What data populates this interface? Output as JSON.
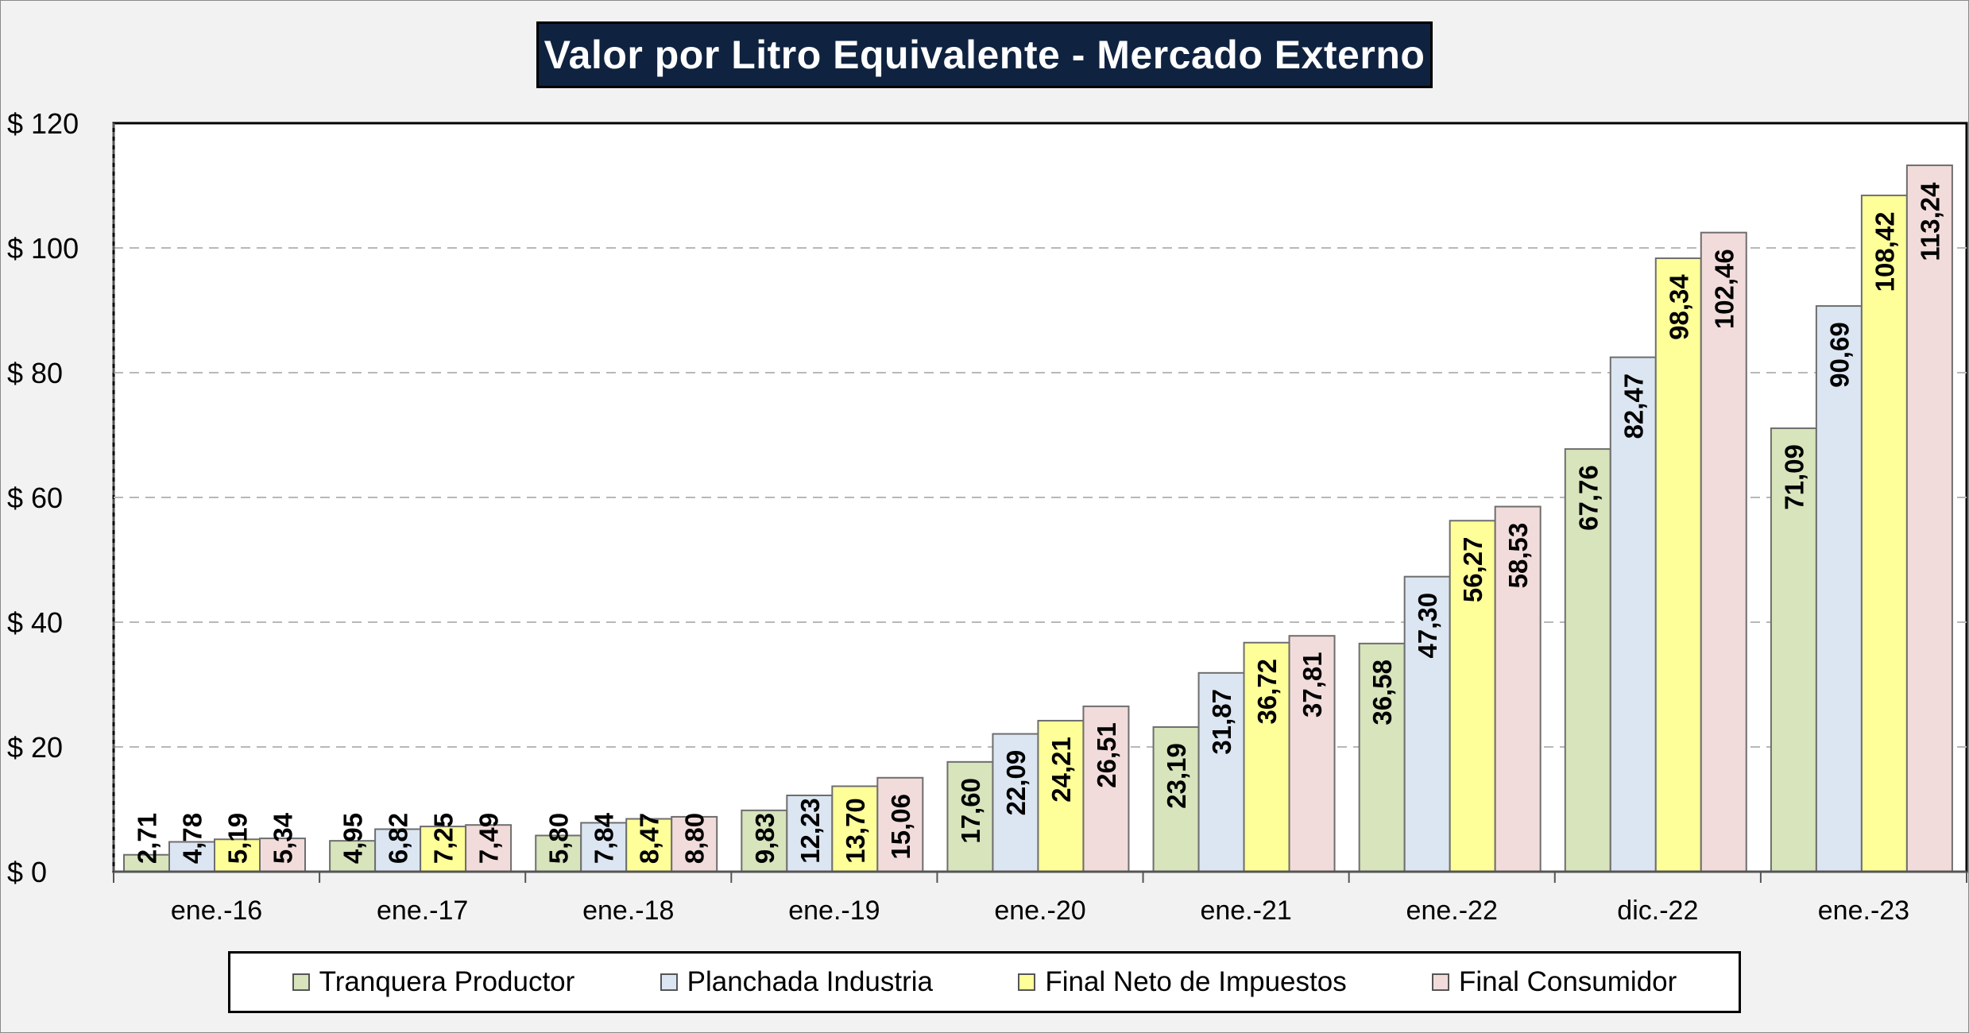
{
  "chart_data": {
    "type": "bar",
    "title": "Valor por Litro Equivalente - Mercado Externo",
    "categories": [
      "ene.-16",
      "ene.-17",
      "ene.-18",
      "ene.-19",
      "ene.-20",
      "ene.-21",
      "ene.-22",
      "dic.-22",
      "ene.-23"
    ],
    "series": [
      {
        "name": "Tranquera Productor",
        "color": "#d7e4bc",
        "values": [
          2.71,
          4.95,
          5.8,
          9.83,
          17.6,
          23.19,
          36.58,
          67.76,
          71.09
        ],
        "labels": [
          "2,71",
          "4,95",
          "5,80",
          "9,83",
          "17,60",
          "23,19",
          "36,58",
          "67,76",
          "71,09"
        ]
      },
      {
        "name": "Planchada Industria",
        "color": "#dce6f2",
        "values": [
          4.78,
          6.82,
          7.84,
          12.23,
          22.09,
          31.87,
          47.3,
          82.47,
          90.69
        ],
        "labels": [
          "4,78",
          "6,82",
          "7,84",
          "12,23",
          "22,09",
          "31,87",
          "47,30",
          "82,47",
          "90,69"
        ]
      },
      {
        "name": "Final Neto de Impuestos",
        "color": "#ffff99",
        "values": [
          5.19,
          7.25,
          8.47,
          13.7,
          24.21,
          36.72,
          56.27,
          98.34,
          108.42
        ],
        "labels": [
          "5,19",
          "7,25",
          "8,47",
          "13,70",
          "24,21",
          "36,72",
          "56,27",
          "98,34",
          "108,42"
        ]
      },
      {
        "name": "Final Consumidor",
        "color": "#f2dcdb",
        "values": [
          5.34,
          7.49,
          8.8,
          15.06,
          26.51,
          37.81,
          58.53,
          102.46,
          113.24
        ],
        "labels": [
          "5,34",
          "7,49",
          "8,80",
          "15,06",
          "26,51",
          "37,81",
          "58,53",
          "102,46",
          "113,24"
        ]
      }
    ],
    "ylim": [
      0,
      120
    ],
    "yticks": [
      0,
      20,
      40,
      60,
      80,
      100,
      120
    ],
    "ytick_labels": [
      "$ 0",
      "$ 20",
      "$ 40",
      "$ 60",
      "$ 80",
      "$ 100",
      "$ 120"
    ],
    "grid": true,
    "legend_position": "bottom",
    "colors": {
      "title_background": "#0f2340",
      "title_text": "#ffffff",
      "chart_area_background": "#f2f2f2",
      "plot_area_background": "#ffffff",
      "gridline": "#b8b8b8",
      "bar_border": "#6e6e6e"
    }
  }
}
